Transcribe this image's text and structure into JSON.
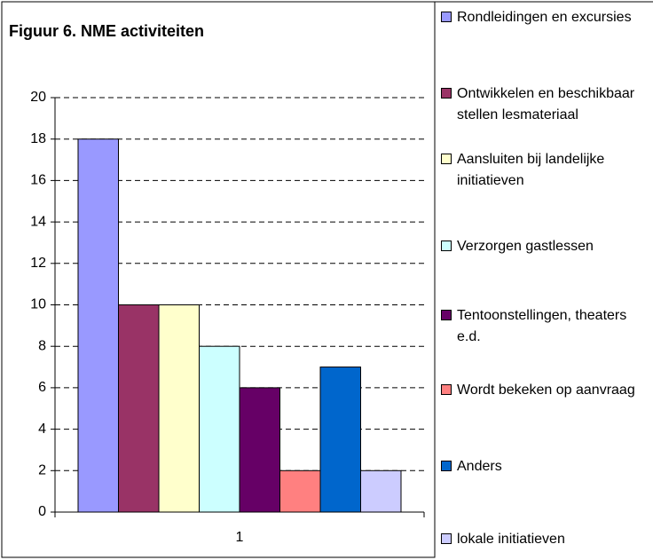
{
  "chart_data": {
    "type": "bar",
    "title": "Figuur 6. NME activiteiten",
    "categories": [
      "1"
    ],
    "series": [
      {
        "name": "Rondleidingen en excursies",
        "color": "#9999ff",
        "values": [
          18
        ]
      },
      {
        "name": "Ontwikkelen en beschikbaar stellen lesmateriaal",
        "color": "#993366",
        "values": [
          10
        ]
      },
      {
        "name": "Aansluiten bij landelijke initiatieven",
        "color": "#ffffcc",
        "values": [
          10
        ]
      },
      {
        "name": "Verzorgen gastlessen",
        "color": "#ccffff",
        "values": [
          8
        ]
      },
      {
        "name": "Tentoonstellingen, theaters e.d.",
        "color": "#660066",
        "values": [
          6
        ]
      },
      {
        "name": "Wordt bekeken op aanvraag",
        "color": "#ff8080",
        "values": [
          2
        ]
      },
      {
        "name": "Anders",
        "color": "#0066cc",
        "values": [
          7
        ]
      },
      {
        "name": "lokale initiatieven",
        "color": "#ccccff",
        "values": [
          2
        ]
      }
    ],
    "ylim": [
      0,
      20
    ],
    "yticks": [
      0,
      2,
      4,
      6,
      8,
      10,
      12,
      14,
      16,
      18,
      20
    ],
    "grid": true
  }
}
